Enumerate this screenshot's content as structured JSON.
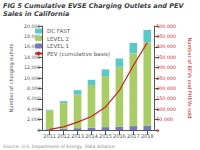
{
  "chart_data": {
    "type": "bar",
    "title": "FIG 5 Cumulative EVSE Charging Outlets and PEV Sales in California",
    "annotations": [
      "Source: U.S. Department of Energy, Data Alliance"
    ],
    "ylabel": "Number of charging outlets",
    "y2label": "Number of BEVs and PHEVs sold",
    "categories": [
      "2011",
      "2012",
      "2013",
      "2014",
      "2015",
      "2016",
      "2017",
      "2018"
    ],
    "series": [
      {
        "name": "LEVEL 1",
        "color": "#7777BB",
        "values": [
          150,
          250,
          350,
          450,
          550,
          650,
          750,
          850
        ]
      },
      {
        "name": "LEVEL 2",
        "color": "#AACC66",
        "values": [
          3600,
          4900,
          6500,
          8200,
          9800,
          11500,
          14000,
          16000
        ]
      },
      {
        "name": "DC FAST",
        "color": "#5BC8C8",
        "values": [
          150,
          400,
          800,
          1000,
          1300,
          1600,
          2000,
          2400
        ]
      },
      {
        "name": "PEV (cumulative basis)",
        "type": "line",
        "axis": "y2",
        "color": "#CC2222",
        "values": [
          3000,
          15000,
          38000,
          65000,
          110000,
          190000,
          310000,
          420000
        ]
      }
    ],
    "stacked": true,
    "ylim": [
      0,
      20000
    ],
    "yticks": [
      0,
      {
        "value": 2000,
        "label": "2,000"
      },
      {
        "value": 4000,
        "label": "4,000"
      },
      {
        "value": 6000,
        "label": "6,000"
      },
      {
        "value": 8000,
        "label": "8,000"
      },
      {
        "value": 10000,
        "label": "10,000"
      },
      {
        "value": 12000,
        "label": "12,000"
      },
      {
        "value": 14000,
        "label": "14,000"
      },
      {
        "value": 16000,
        "label": "16,000"
      },
      {
        "value": 18000,
        "label": "18,000"
      },
      {
        "value": 20000,
        "label": "20,000"
      }
    ],
    "y2lim": [
      0,
      500000
    ],
    "y2ticks": [
      {
        "value": 0,
        "label": "$"
      },
      {
        "value": 50000,
        "label": "50,000"
      },
      {
        "value": 100000,
        "label": "100,000"
      },
      {
        "value": 150000,
        "label": "150,000"
      },
      {
        "value": 200000,
        "label": "200,000"
      },
      {
        "value": 250000,
        "label": "250,000"
      },
      {
        "value": 300000,
        "label": "300,000"
      },
      {
        "value": 350000,
        "label": "350,000"
      },
      {
        "value": 400000,
        "label": "400,000"
      },
      {
        "value": 450000,
        "label": "450,000"
      },
      {
        "value": 500000,
        "label": "500,000"
      }
    ],
    "legend": "upper left",
    "grid": false
  }
}
